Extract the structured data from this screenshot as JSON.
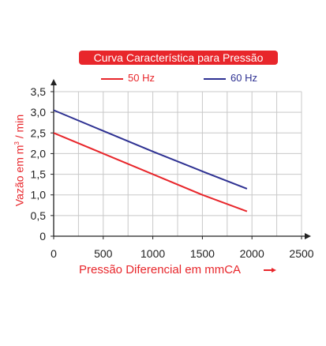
{
  "chart_data": {
    "type": "line",
    "title": "Curva Característica para Pressão",
    "xlabel": "Pressão Diferencial em mmCA",
    "ylabel": "Vazão em m³ / min",
    "ylabel_parts": {
      "pre": "Vazão em m",
      "sup": "3",
      "post": " / min"
    },
    "xlim": [
      0,
      2500
    ],
    "ylim": [
      0,
      3.5
    ],
    "xticks": [
      "0",
      "500",
      "1000",
      "1500",
      "2000",
      "2500"
    ],
    "xtick_values": [
      0,
      500,
      1000,
      1500,
      2000,
      2500
    ],
    "yticks": [
      "0",
      "0,5",
      "1,0",
      "1,5",
      "2,0",
      "2,5",
      "3,0",
      "3,5"
    ],
    "ytick_values": [
      0,
      0.5,
      1.0,
      1.5,
      2.0,
      2.5,
      3.0,
      3.5
    ],
    "grid": true,
    "legend_position": "top",
    "series": [
      {
        "name": "50 Hz",
        "color": "#e8262b",
        "x": [
          0,
          500,
          1000,
          1500,
          1950
        ],
        "y": [
          2.5,
          2.0,
          1.5,
          1.0,
          0.6
        ]
      },
      {
        "name": "60 Hz",
        "color": "#2e3192",
        "x": [
          0,
          500,
          1000,
          1500,
          1950
        ],
        "y": [
          3.05,
          2.55,
          2.05,
          1.57,
          1.15
        ]
      }
    ]
  }
}
